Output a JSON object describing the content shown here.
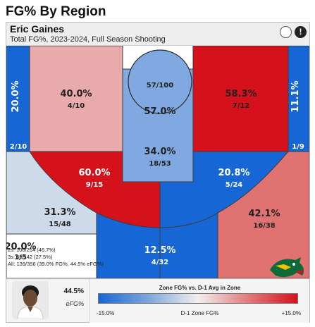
{
  "page": {
    "title": "FG% By Region"
  },
  "header": {
    "player_name": "Eric Gaines",
    "subtitle": "Total FG%, 2023-2024, Full Season Shooting",
    "info_icon": "info-icon",
    "circle_icon": "circle-toggle-icon"
  },
  "chart_data": {
    "type": "shot-chart",
    "zones": [
      {
        "zone": "left-corner-3",
        "pct": "20.0%",
        "made": 2,
        "att": 10,
        "frac": "2/10",
        "color": "#1766d6"
      },
      {
        "zone": "left-mid-baseline",
        "pct": "40.0%",
        "made": 4,
        "att": 10,
        "frac": "4/10",
        "color": "#e8aaaa"
      },
      {
        "zone": "restricted-area",
        "pct": "57.0%",
        "made": 57,
        "att": 100,
        "frac": "57/100",
        "color": "#7fa9e0"
      },
      {
        "zone": "paint-non-ra",
        "pct": "34.0%",
        "made": 18,
        "att": 53,
        "frac": "18/53",
        "color": "#7fa9e0"
      },
      {
        "zone": "right-mid-baseline",
        "pct": "58.3%",
        "made": 7,
        "att": 12,
        "frac": "7/12",
        "color": "#d5121c"
      },
      {
        "zone": "right-corner-3",
        "pct": "11.1%",
        "made": 1,
        "att": 9,
        "frac": "1/9",
        "color": "#1766d6"
      },
      {
        "zone": "left-elbow-mid",
        "pct": "60.0%",
        "made": 9,
        "att": 15,
        "frac": "9/15",
        "color": "#d5121c"
      },
      {
        "zone": "right-elbow-mid",
        "pct": "20.8%",
        "made": 5,
        "att": 24,
        "frac": "5/24",
        "color": "#1766d6"
      },
      {
        "zone": "left-wing-3",
        "pct": "31.3%",
        "made": 15,
        "att": 48,
        "frac": "15/48",
        "color": "#ccdaea"
      },
      {
        "zone": "right-wing-3",
        "pct": "42.1%",
        "made": 16,
        "att": 38,
        "frac": "16/38",
        "color": "#e07272"
      },
      {
        "zone": "top-of-key-3",
        "pct": "12.5%",
        "made": 4,
        "att": 32,
        "frac": "4/32",
        "color": "#1766d6"
      },
      {
        "zone": "heave",
        "pct": "20.0%",
        "made": 1,
        "att": 5,
        "frac": "1/5",
        "color": "#ffffff"
      }
    ]
  },
  "stats": {
    "twos": "2s: 100/214 (46.7%)",
    "threes": "3s: 39/142 (27.5%)",
    "all": "All: 139/356 (39.0% FG%, 44.5% eFG%)"
  },
  "logo": {
    "name": "dragon-logo-icon"
  },
  "footer": {
    "efg_value": "44.5%",
    "efg_label": "eFG%",
    "scale_title": "Zone FG% vs. D-1 Avg in Zone",
    "scale_min": "-15.0%",
    "scale_mid": "D-1 Zone FG%",
    "scale_max": "+15.0%"
  }
}
